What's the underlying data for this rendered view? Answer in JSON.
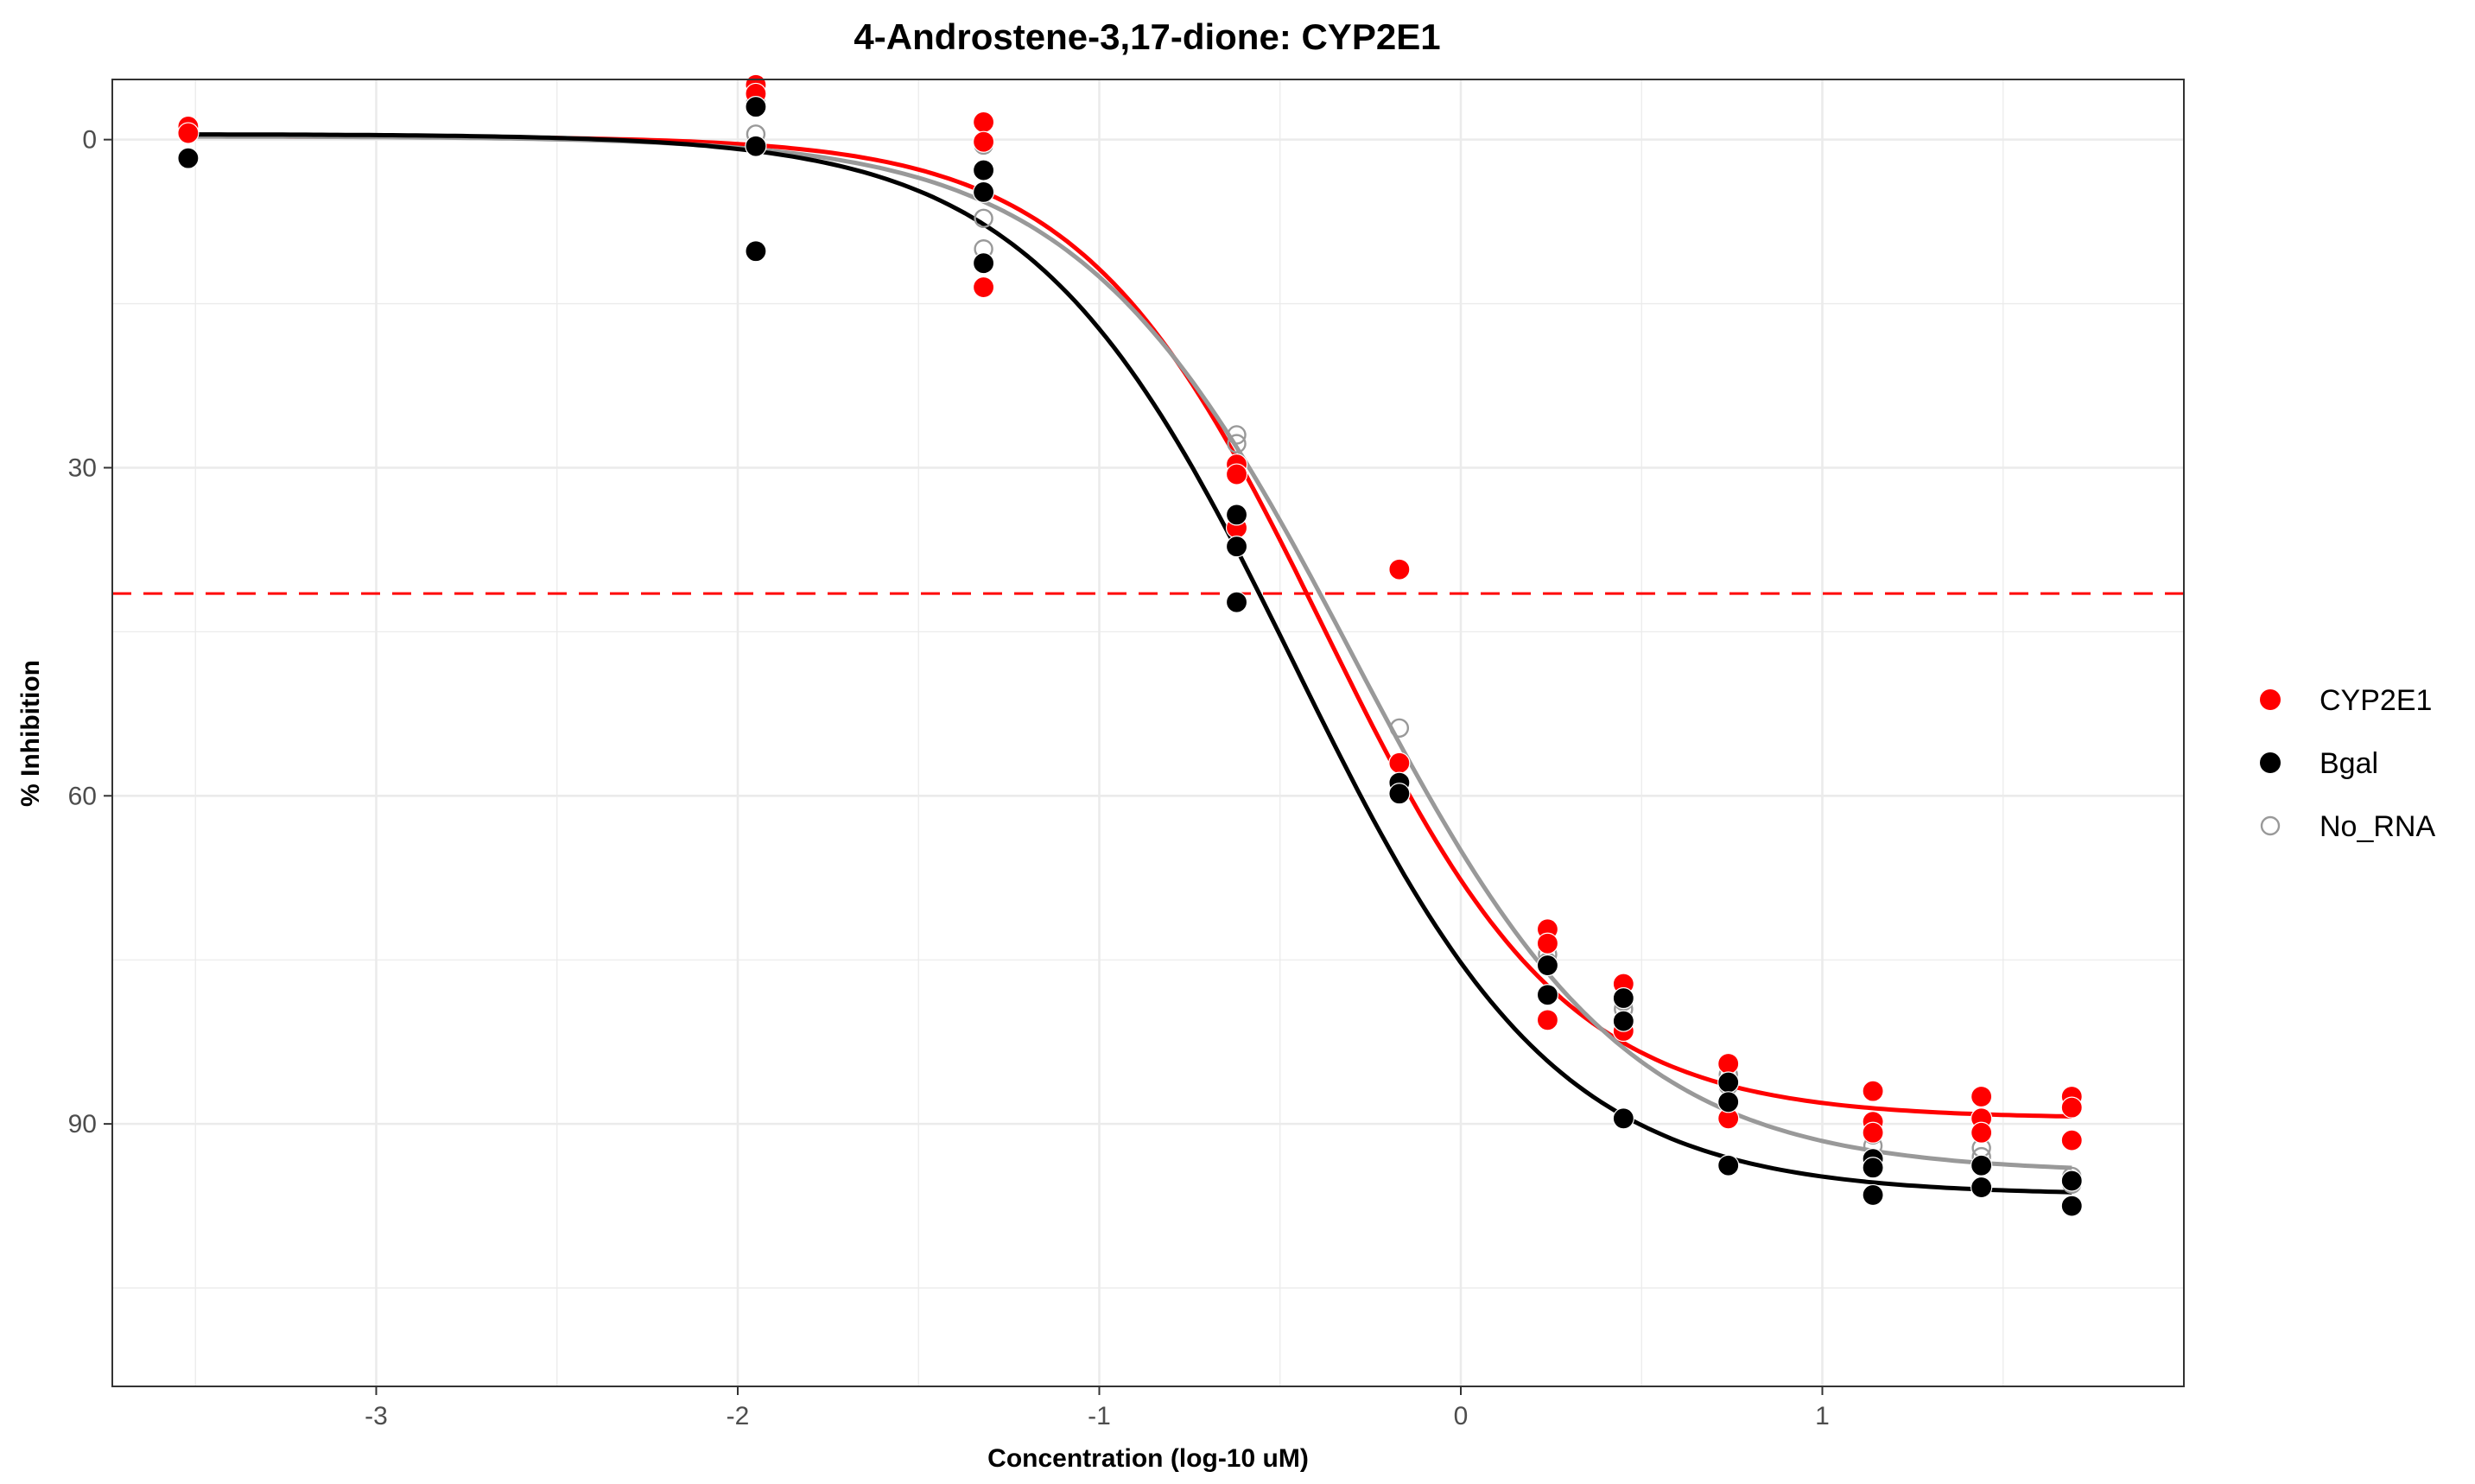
{
  "chart_data": {
    "type": "scatter",
    "title": "4-Androstene-3,17-dione: CYP2E1",
    "xlabel": "Concentration (log-10 uM)",
    "ylabel": "% Inhibition",
    "xlim": [
      -3.73,
      2.0
    ],
    "ylim": [
      -5.5,
      114
    ],
    "y_reversed": true,
    "x_ticks": [
      -3,
      -2,
      -1,
      0,
      1
    ],
    "x_tick_labels": [
      "-3",
      "-2",
      "-1",
      "0",
      "1"
    ],
    "y_ticks": [
      0,
      30,
      60,
      90
    ],
    "y_tick_labels": [
      "0",
      "30",
      "60",
      "90"
    ],
    "grid": true,
    "legend_position": "right",
    "reference_line": {
      "orientation": "horizontal",
      "y": 41.5,
      "style": "dashed",
      "color": "#ff0000"
    },
    "series": [
      {
        "name": "CYP2E1",
        "color": "#ff0000",
        "marker": "filled-circle",
        "fit": {
          "bottom": -0.3,
          "top": 89.5,
          "log_ic50": -0.38,
          "hill": 1.3
        },
        "points": [
          {
            "x": -3.52,
            "y": -1.2
          },
          {
            "x": -3.52,
            "y": -0.6
          },
          {
            "x": -1.95,
            "y": -5.0
          },
          {
            "x": -1.95,
            "y": -4.2
          },
          {
            "x": -1.32,
            "y": -1.6
          },
          {
            "x": -1.32,
            "y": 0.2
          },
          {
            "x": -1.32,
            "y": 13.5
          },
          {
            "x": -0.62,
            "y": 29.7
          },
          {
            "x": -0.62,
            "y": 30.6
          },
          {
            "x": -0.62,
            "y": 35.5
          },
          {
            "x": -0.17,
            "y": 39.3
          },
          {
            "x": -0.17,
            "y": 57.0
          },
          {
            "x": 0.24,
            "y": 72.2
          },
          {
            "x": 0.24,
            "y": 73.5
          },
          {
            "x": 0.24,
            "y": 80.5
          },
          {
            "x": 0.45,
            "y": 77.2
          },
          {
            "x": 0.45,
            "y": 81.5
          },
          {
            "x": 0.74,
            "y": 84.5
          },
          {
            "x": 0.74,
            "y": 89.5
          },
          {
            "x": 1.14,
            "y": 87.0
          },
          {
            "x": 1.14,
            "y": 89.8
          },
          {
            "x": 1.14,
            "y": 90.8
          },
          {
            "x": 1.44,
            "y": 87.5
          },
          {
            "x": 1.44,
            "y": 89.5
          },
          {
            "x": 1.44,
            "y": 90.8
          },
          {
            "x": 1.69,
            "y": 87.5
          },
          {
            "x": 1.69,
            "y": 88.5
          },
          {
            "x": 1.69,
            "y": 91.5
          }
        ]
      },
      {
        "name": "Bgal",
        "color": "#000000",
        "marker": "filled-circle",
        "fit": {
          "bottom": -0.5,
          "top": 96.5,
          "log_ic50": -0.46,
          "hill": 1.2
        },
        "points": [
          {
            "x": -3.52,
            "y": 1.7
          },
          {
            "x": -1.95,
            "y": -3.0
          },
          {
            "x": -1.95,
            "y": 0.6
          },
          {
            "x": -1.95,
            "y": 10.2
          },
          {
            "x": -1.32,
            "y": 2.8
          },
          {
            "x": -1.32,
            "y": 4.8
          },
          {
            "x": -1.32,
            "y": 11.3
          },
          {
            "x": -0.62,
            "y": 34.3
          },
          {
            "x": -0.62,
            "y": 37.2
          },
          {
            "x": -0.62,
            "y": 42.3
          },
          {
            "x": -0.17,
            "y": 58.8
          },
          {
            "x": -0.17,
            "y": 59.8
          },
          {
            "x": 0.24,
            "y": 75.5
          },
          {
            "x": 0.24,
            "y": 78.2
          },
          {
            "x": 0.45,
            "y": 78.5
          },
          {
            "x": 0.45,
            "y": 80.6
          },
          {
            "x": 0.45,
            "y": 89.5
          },
          {
            "x": 0.74,
            "y": 86.2
          },
          {
            "x": 0.74,
            "y": 88.0
          },
          {
            "x": 0.74,
            "y": 93.8
          },
          {
            "x": 1.14,
            "y": 93.2
          },
          {
            "x": 1.14,
            "y": 94.0
          },
          {
            "x": 1.14,
            "y": 96.5
          },
          {
            "x": 1.44,
            "y": 93.8
          },
          {
            "x": 1.44,
            "y": 95.8
          },
          {
            "x": 1.69,
            "y": 95.2
          },
          {
            "x": 1.69,
            "y": 97.5
          }
        ]
      },
      {
        "name": "No_RNA",
        "color": "#999999",
        "marker": "open-circle",
        "fit": {
          "bottom": -0.3,
          "top": 94.5,
          "log_ic50": -0.3,
          "hill": 1.15
        },
        "points": [
          {
            "x": -1.95,
            "y": -3.5
          },
          {
            "x": -1.95,
            "y": -0.5
          },
          {
            "x": -1.32,
            "y": 0.5
          },
          {
            "x": -1.32,
            "y": 7.2
          },
          {
            "x": -1.32,
            "y": 10.0
          },
          {
            "x": -0.62,
            "y": 27.0
          },
          {
            "x": -0.62,
            "y": 27.8
          },
          {
            "x": -0.17,
            "y": 53.8
          },
          {
            "x": 0.24,
            "y": 74.5
          },
          {
            "x": 0.24,
            "y": 75.2
          },
          {
            "x": 0.45,
            "y": 78.8
          },
          {
            "x": 0.45,
            "y": 79.5
          },
          {
            "x": 0.74,
            "y": 85.5
          },
          {
            "x": 0.74,
            "y": 86.5
          },
          {
            "x": 1.14,
            "y": 91.0
          },
          {
            "x": 1.14,
            "y": 92.0
          },
          {
            "x": 1.44,
            "y": 92.2
          },
          {
            "x": 1.44,
            "y": 93.0
          },
          {
            "x": 1.69,
            "y": 94.8
          },
          {
            "x": 1.69,
            "y": 95.5
          }
        ]
      }
    ]
  }
}
